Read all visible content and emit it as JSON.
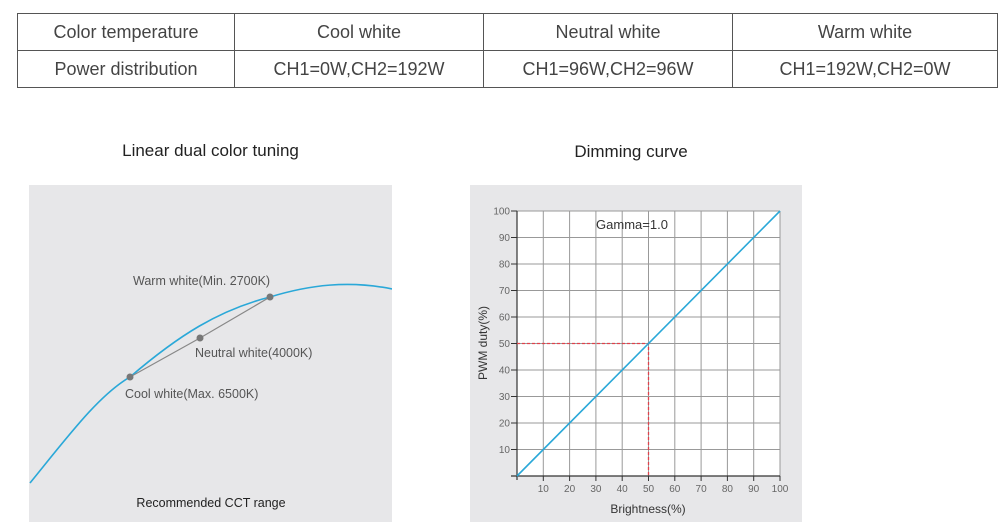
{
  "table": {
    "headers": [
      "Color temperature",
      "Cool white",
      "Neutral white",
      "Warm white"
    ],
    "row": [
      "Power distribution",
      "CH1=0W,CH2=192W",
      "CH1=96W,CH2=96W",
      "CH1=192W,CH2=0W"
    ]
  },
  "chart_data": [
    {
      "type": "line",
      "title": "Linear dual color tuning",
      "caption": "Recommended CCT range",
      "points": [
        {
          "label": "Warm white(Min. 2700K)"
        },
        {
          "label": "Neutral white(4000K)"
        },
        {
          "label": "Cool white(Max. 6500K)"
        }
      ],
      "colors": {
        "curve": "#2aa8d8",
        "points": "#777777"
      }
    },
    {
      "type": "line",
      "title": "Dimming curve",
      "annotation": "Gamma=1.0",
      "xlabel": "Brightness(%)",
      "ylabel": "PWM duty(%)",
      "xlim": [
        0,
        100
      ],
      "ylim": [
        0,
        100
      ],
      "x_ticks": [
        "10",
        "20",
        "30",
        "40",
        "50",
        "60",
        "70",
        "80",
        "90",
        "100"
      ],
      "y_ticks": [
        "10",
        "20",
        "30",
        "40",
        "50",
        "60",
        "70",
        "80",
        "90",
        "100"
      ],
      "grid": true,
      "series": [
        {
          "name": "Gamma=1.0",
          "x": [
            0,
            100
          ],
          "y": [
            0,
            100
          ]
        }
      ],
      "highlight": {
        "x": 50,
        "y": 50
      },
      "colors": {
        "line": "#2aa8d8",
        "highlight": "#e0414b"
      }
    }
  ]
}
